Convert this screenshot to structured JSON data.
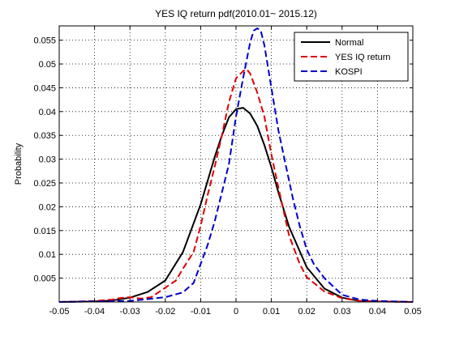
{
  "chart_data": {
    "type": "line",
    "title": "YES IQ return pdf(2010.01~ 2015.12)",
    "xlabel": "",
    "ylabel": "Probability",
    "xlim": [
      -0.05,
      0.05
    ],
    "ylim": [
      0,
      0.058
    ],
    "xticks": [
      "-0.05",
      "-0.04",
      "-0.03",
      "-0.02",
      "-0.01",
      "0",
      "0.01",
      "0.02",
      "0.03",
      "0.04",
      "0.05"
    ],
    "xtick_values": [
      -0.05,
      -0.04,
      -0.03,
      -0.02,
      -0.01,
      0,
      0.01,
      0.02,
      0.03,
      0.04,
      0.05
    ],
    "yticks": [
      "0.005",
      "0.01",
      "0.015",
      "0.02",
      "0.025",
      "0.03",
      "0.035",
      "0.04",
      "0.045",
      "0.05",
      "0.055"
    ],
    "ytick_values": [
      0.005,
      0.01,
      0.015,
      0.02,
      0.025,
      0.03,
      0.035,
      0.04,
      0.045,
      0.05,
      0.055
    ],
    "grid": true,
    "legend_position": "top-right",
    "series": [
      {
        "name": "Normal",
        "color": "#000000",
        "dash": "solid",
        "x": [
          -0.05,
          -0.04,
          -0.035,
          -0.03,
          -0.025,
          -0.02,
          -0.015,
          -0.01,
          -0.008,
          -0.006,
          -0.004,
          -0.002,
          0,
          0.002,
          0.004,
          0.006,
          0.008,
          0.01,
          0.012,
          0.015,
          0.02,
          0.025,
          0.03,
          0.035,
          0.04,
          0.05
        ],
        "y": [
          0,
          0.0001,
          0.0003,
          0.0009,
          0.0021,
          0.0045,
          0.0105,
          0.0205,
          0.0255,
          0.0305,
          0.035,
          0.0388,
          0.0405,
          0.0408,
          0.0396,
          0.037,
          0.033,
          0.0283,
          0.023,
          0.0158,
          0.0073,
          0.0028,
          0.0009,
          0.0002,
          0.0001,
          0
        ]
      },
      {
        "name": "YES IQ return",
        "color": "#dd0000",
        "dash": "dashed",
        "x": [
          -0.05,
          -0.04,
          -0.035,
          -0.033,
          -0.03,
          -0.027,
          -0.024,
          -0.02,
          -0.017,
          -0.015,
          -0.012,
          -0.01,
          -0.008,
          -0.006,
          -0.004,
          -0.002,
          0,
          0.002,
          0.003,
          0.004,
          0.006,
          0.008,
          0.01,
          0.012,
          0.015,
          0.018,
          0.02,
          0.025,
          0.03,
          0.035,
          0.04,
          0.05
        ],
        "y": [
          0,
          0.0002,
          0.0005,
          0.0008,
          0.001,
          0.0007,
          0.001,
          0.003,
          0.0045,
          0.007,
          0.0105,
          0.016,
          0.0225,
          0.0285,
          0.035,
          0.042,
          0.047,
          0.0485,
          0.0489,
          0.048,
          0.044,
          0.039,
          0.031,
          0.024,
          0.014,
          0.008,
          0.0052,
          0.0022,
          0.0008,
          0.0002,
          0.0001,
          0
        ]
      },
      {
        "name": "KOSPI",
        "color": "#0000cc",
        "dash": "dashed",
        "x": [
          -0.05,
          -0.04,
          -0.03,
          -0.02,
          -0.015,
          -0.012,
          -0.01,
          -0.008,
          -0.006,
          -0.004,
          -0.002,
          0,
          0.002,
          0.004,
          0.005,
          0.006,
          0.007,
          0.008,
          0.01,
          0.012,
          0.014,
          0.016,
          0.018,
          0.02,
          0.022,
          0.025,
          0.03,
          0.035,
          0.04,
          0.045,
          0.05
        ],
        "y": [
          0,
          0.0001,
          0.0002,
          0.001,
          0.002,
          0.004,
          0.008,
          0.012,
          0.017,
          0.023,
          0.029,
          0.039,
          0.047,
          0.0545,
          0.057,
          0.0575,
          0.057,
          0.054,
          0.045,
          0.036,
          0.029,
          0.022,
          0.016,
          0.011,
          0.008,
          0.005,
          0.0015,
          0.0005,
          0.0002,
          0.0001,
          0
        ]
      }
    ]
  }
}
